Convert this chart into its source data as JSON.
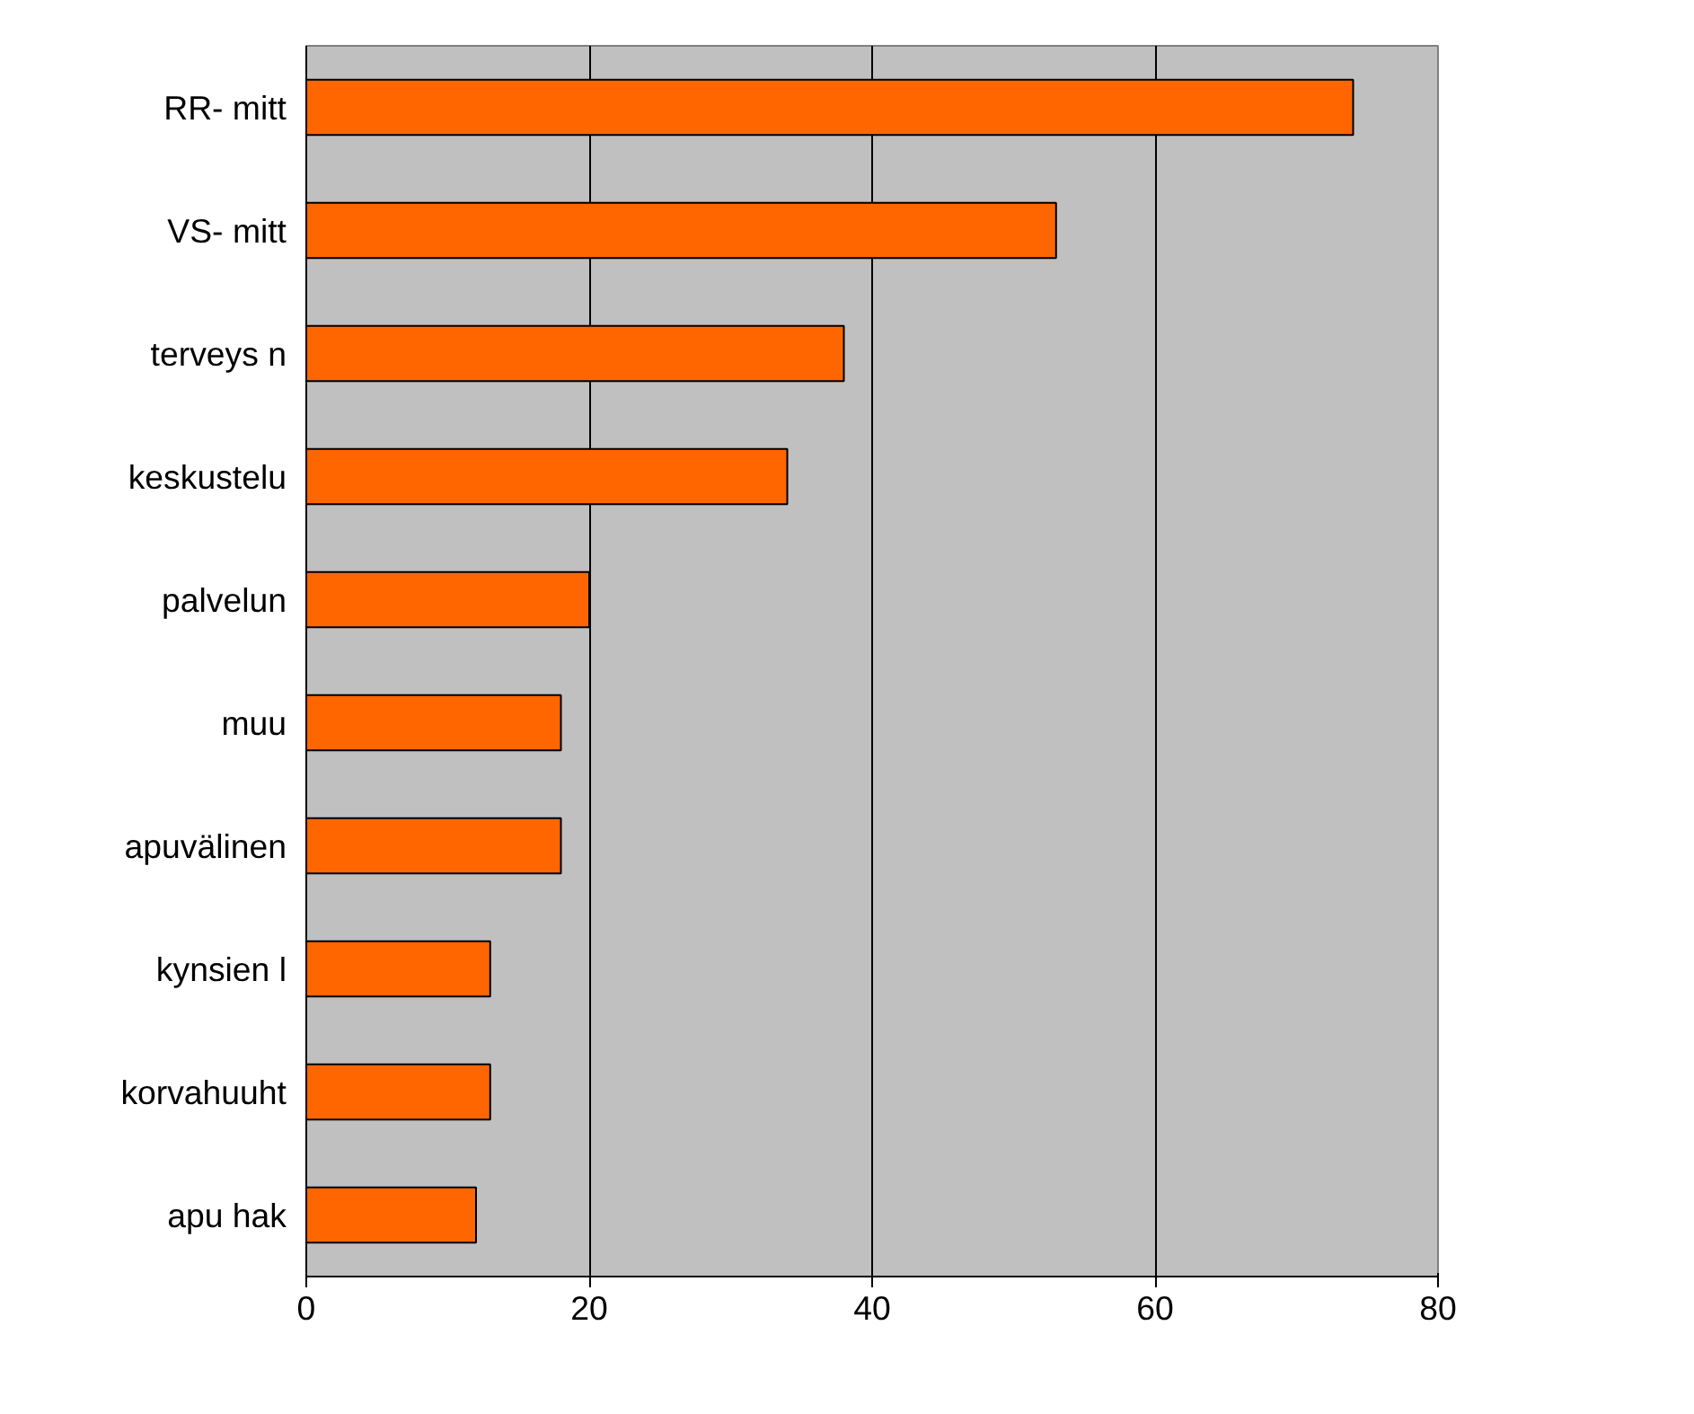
{
  "chart_data": {
    "type": "bar",
    "orientation": "horizontal",
    "categories": [
      "RR- mitt",
      "VS- mitt",
      "terveys n",
      "keskustelu",
      "palvelun",
      "muu",
      "apuvälinen",
      "kynsien l",
      "korvahuuht",
      "apu hak"
    ],
    "values": [
      74,
      53,
      38,
      34,
      20,
      18,
      18,
      13,
      13,
      12
    ],
    "color": "#ff6600",
    "xlim": [
      0,
      80
    ],
    "xticks": [
      0,
      20,
      40,
      60,
      80
    ],
    "grid": "x"
  }
}
